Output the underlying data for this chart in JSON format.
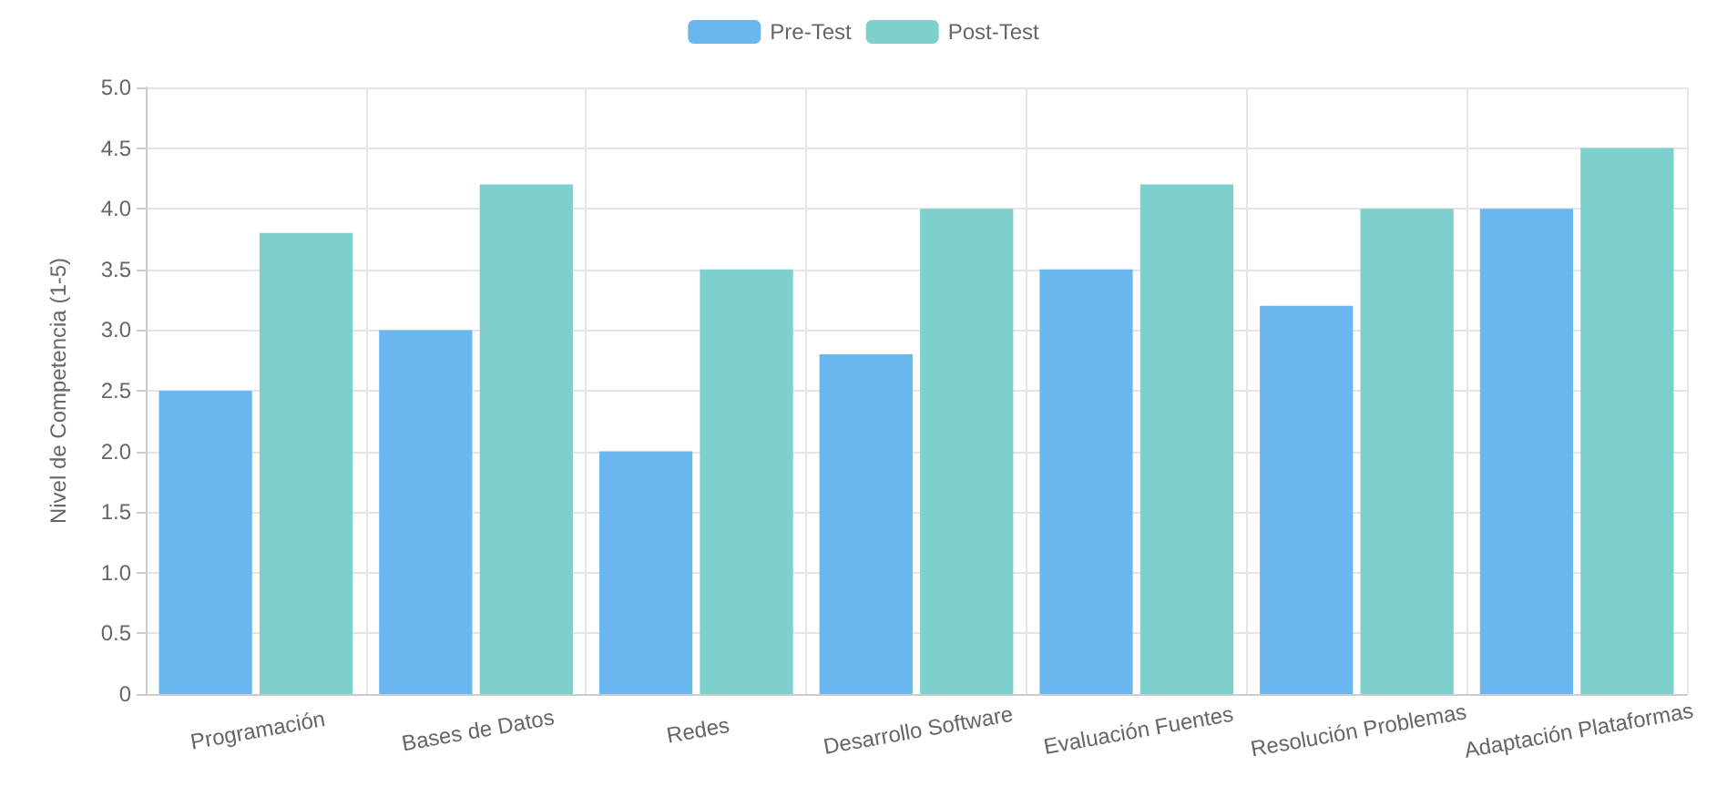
{
  "chart_data": {
    "type": "bar",
    "ylabel": "Nivel de Competencia (1-5)",
    "categories": [
      "Programación",
      "Bases de Datos",
      "Redes",
      "Desarrollo Software",
      "Evaluación Fuentes",
      "Resolución Problemas",
      "Adaptación Plataformas"
    ],
    "series": [
      {
        "name": "Pre-Test",
        "color": "#6ab6ee",
        "values": [
          2.5,
          3.0,
          2.0,
          2.8,
          3.5,
          3.2,
          4.0
        ]
      },
      {
        "name": "Post-Test",
        "color": "#7dd0cc",
        "values": [
          3.8,
          4.2,
          3.5,
          4.0,
          4.2,
          4.0,
          4.5
        ]
      }
    ],
    "ylim": [
      0,
      5
    ],
    "yticks": [
      0,
      0.5,
      {
        "value": 1,
        "label": "1.0"
      },
      1.5,
      {
        "value": 2,
        "label": "2.0"
      },
      2.5,
      {
        "value": 3,
        "label": "3.0"
      },
      3.5,
      {
        "value": 4,
        "label": "4.0"
      },
      4.5,
      {
        "value": 5,
        "label": "5.0"
      }
    ],
    "grid": true,
    "legend": "top"
  }
}
